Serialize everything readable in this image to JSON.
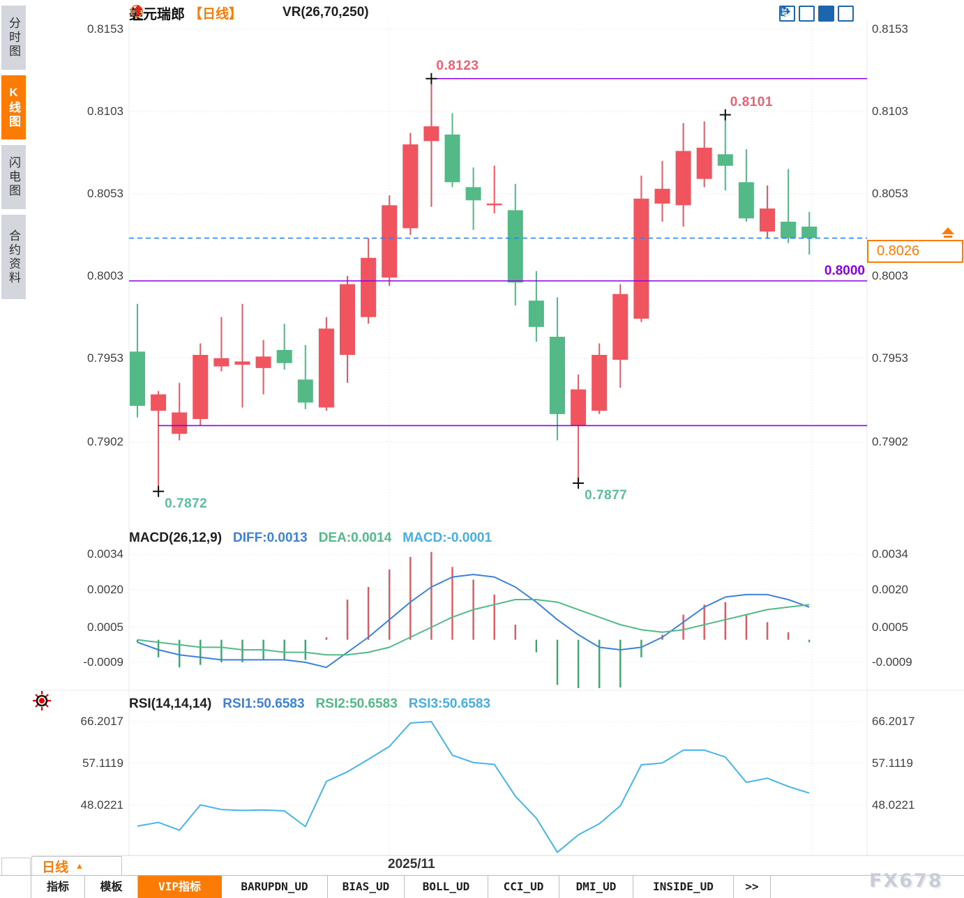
{
  "header": {
    "symbol": "美元瑞郎",
    "period_tag": "【日线】",
    "indicator": "VR(26,70,250)"
  },
  "toolbar": {
    "icons": [
      "crosshair-icon",
      "axis-range-icon",
      "axis-play-icon",
      "exit-right-icon"
    ],
    "active_index": 2
  },
  "sidebar": {
    "items": [
      {
        "label": "分时图",
        "active": false
      },
      {
        "label": "K线图",
        "active": true
      },
      {
        "label": "闪电图",
        "active": false
      },
      {
        "label": "合约资料",
        "active": false
      }
    ]
  },
  "colors": {
    "up": "#f0545f",
    "down": "#53b987",
    "purple": "#8a00e6",
    "dashed_blue": "#1e88ff",
    "diff_line": "#3b82d8",
    "dea_line": "#53b987",
    "macd_value": "#45aee3",
    "rsi_line": "#45b5e8",
    "hist_up": "#e5555e",
    "hist_down": "#3fa372",
    "accent_orange": "#fb7b05",
    "annotation_pink": "#f25f72",
    "annotation_teal": "#57bfa0",
    "toolbar_blue": "#1b66ad"
  },
  "chart_data": [
    {
      "type": "candlestick",
      "title": "美元瑞郎 日线",
      "y_axis_labels": [
        "0.8153",
        "0.8103",
        "0.8053",
        "0.8003",
        "0.7953",
        "0.7902"
      ],
      "ylim": [
        0.7865,
        0.8158
      ],
      "x_axis_labels": [
        "2025/11"
      ],
      "grid": true,
      "candles": [
        [
          0.7957,
          0.7986,
          0.7917,
          0.7924
        ],
        [
          0.7921,
          0.7933,
          0.7872,
          0.7931
        ],
        [
          0.7907,
          0.7938,
          0.7903,
          0.792
        ],
        [
          0.7916,
          0.7962,
          0.7912,
          0.7955
        ],
        [
          0.7948,
          0.7978,
          0.7945,
          0.7953
        ],
        [
          0.7949,
          0.7986,
          0.7923,
          0.7951
        ],
        [
          0.7947,
          0.7964,
          0.7931,
          0.7954
        ],
        [
          0.7958,
          0.7974,
          0.7946,
          0.795
        ],
        [
          0.794,
          0.7961,
          0.7922,
          0.7926
        ],
        [
          0.7923,
          0.7978,
          0.7921,
          0.7971
        ],
        [
          0.7955,
          0.8003,
          0.7938,
          0.7998
        ],
        [
          0.7978,
          0.8026,
          0.7974,
          0.8014
        ],
        [
          0.8002,
          0.8052,
          0.7997,
          0.8046
        ],
        [
          0.8032,
          0.809,
          0.8028,
          0.8083
        ],
        [
          0.8085,
          0.8123,
          0.8045,
          0.8094
        ],
        [
          0.8089,
          0.8102,
          0.8057,
          0.806
        ],
        [
          0.8057,
          0.8069,
          0.8031,
          0.8049
        ],
        [
          0.8046,
          0.807,
          0.8041,
          0.8047
        ],
        [
          0.8043,
          0.8059,
          0.7985,
          0.7999
        ],
        [
          0.7988,
          0.8006,
          0.7963,
          0.7972
        ],
        [
          0.7966,
          0.799,
          0.7903,
          0.7919
        ],
        [
          0.7912,
          0.7943,
          0.7877,
          0.7934
        ],
        [
          0.7921,
          0.7962,
          0.7919,
          0.7955
        ],
        [
          0.7952,
          0.7998,
          0.7935,
          0.7992
        ],
        [
          0.7977,
          0.8064,
          0.7975,
          0.805
        ],
        [
          0.8047,
          0.8073,
          0.8036,
          0.8056
        ],
        [
          0.8046,
          0.8096,
          0.8033,
          0.8079
        ],
        [
          0.8062,
          0.8097,
          0.8057,
          0.8081
        ],
        [
          0.8077,
          0.8101,
          0.8055,
          0.807
        ],
        [
          0.806,
          0.808,
          0.8036,
          0.8038
        ],
        [
          0.803,
          0.8058,
          0.8026,
          0.8044
        ],
        [
          0.8036,
          0.8068,
          0.8023,
          0.8026
        ],
        [
          0.8033,
          0.8042,
          0.8016,
          0.8026
        ]
      ],
      "levels": [
        {
          "price": 0.8123,
          "from_candle": 14
        },
        {
          "price": 0.8,
          "from_candle": null
        },
        {
          "price": 0.7912,
          "from_candle": 1
        }
      ],
      "psych_label": "0.8000",
      "current_price": "0.8026",
      "current_price_value": 0.8026,
      "annotations": [
        {
          "label": "0.8123",
          "price": 0.8123,
          "candle": 14,
          "place": "above",
          "color": "pink"
        },
        {
          "label": "0.8101",
          "price": 0.8101,
          "candle": 28,
          "place": "above",
          "color": "pink"
        },
        {
          "label": "0.7872",
          "price": 0.7872,
          "candle": 1,
          "place": "below",
          "color": "teal"
        },
        {
          "label": "0.7877",
          "price": 0.7877,
          "candle": 21,
          "place": "below",
          "color": "teal"
        }
      ]
    },
    {
      "type": "bar",
      "name": "MACD",
      "params": "MACD(26,12,9)",
      "legend": [
        "DIFF:0.0013",
        "DEA:0.0014",
        "MACD:-0.0001"
      ],
      "y_axis_labels": [
        "0.0034",
        "0.0020",
        "0.0005",
        "-0.0009"
      ],
      "histogram": [
        -0.0001,
        -0.0007,
        -0.0011,
        -0.001,
        -0.0009,
        -0.0009,
        -0.0008,
        -0.0008,
        -0.0008,
        0.0001,
        0.0016,
        0.0021,
        0.0028,
        0.0033,
        0.0035,
        0.0029,
        0.0024,
        0.0018,
        0.0006,
        -0.0005,
        -0.0018,
        -0.0024,
        -0.0024,
        -0.0019,
        -0.0007,
        0.0002,
        0.001,
        0.0014,
        0.0015,
        0.001,
        0.0007,
        0.0003,
        -0.0001
      ],
      "diff": [
        -0.0001,
        -0.0004,
        -0.0006,
        -0.0007,
        -0.0008,
        -0.0008,
        -0.0008,
        -0.0008,
        -0.0009,
        -0.0011,
        -0.0005,
        0.0001,
        0.0008,
        0.0015,
        0.0021,
        0.0025,
        0.0026,
        0.0025,
        0.0021,
        0.0015,
        0.0008,
        0.0002,
        -0.0003,
        -0.0004,
        -0.0003,
        0.0001,
        0.0007,
        0.0013,
        0.0017,
        0.0018,
        0.0018,
        0.0016,
        0.0013
      ],
      "dea": [
        0.0,
        -0.0001,
        -0.0002,
        -0.0003,
        -0.0003,
        -0.0004,
        -0.0004,
        -0.0005,
        -0.0005,
        -0.0006,
        -0.0006,
        -0.0005,
        -0.0003,
        0.0001,
        0.0005,
        0.0009,
        0.0012,
        0.0014,
        0.0016,
        0.0016,
        0.0015,
        0.0012,
        0.0009,
        0.0006,
        0.0004,
        0.0003,
        0.0004,
        0.0006,
        0.0008,
        0.001,
        0.0012,
        0.0013,
        0.0014
      ]
    },
    {
      "type": "line",
      "name": "RSI",
      "params": "RSI(14,14,14)",
      "legend": [
        "RSI1:50.6583",
        "RSI2:50.6583",
        "RSI3:50.6583"
      ],
      "y_axis_labels": [
        "66.2017",
        "57.1119",
        "48.0221"
      ],
      "rsi": [
        43.5,
        44.3,
        42.6,
        48.1,
        47.1,
        46.9,
        47.0,
        46.8,
        43.4,
        53.2,
        55.3,
        58.0,
        60.8,
        65.9,
        66.2,
        58.9,
        57.3,
        56.9,
        50.0,
        45.2,
        37.8,
        41.6,
        44.0,
        47.9,
        56.8,
        57.2,
        60.0,
        60.0,
        58.5,
        53.0,
        53.9,
        52.1,
        50.66
      ]
    }
  ],
  "bottom": {
    "date_label": "2025/11",
    "period_button": "日线",
    "tabs": [
      {
        "label": "指标",
        "active": false
      },
      {
        "label": "模板",
        "active": false
      },
      {
        "label": "VIP指标",
        "active": true
      },
      {
        "label": "BARUPDN_UD",
        "active": false
      },
      {
        "label": "BIAS_UD",
        "active": false
      },
      {
        "label": "BOLL_UD",
        "active": false
      },
      {
        "label": "CCI_UD",
        "active": false
      },
      {
        "label": "DMI_UD",
        "active": false
      },
      {
        "label": "INSIDE_UD",
        "active": false
      },
      {
        "label": ">>",
        "active": false
      }
    ],
    "watermark": "FX678"
  }
}
